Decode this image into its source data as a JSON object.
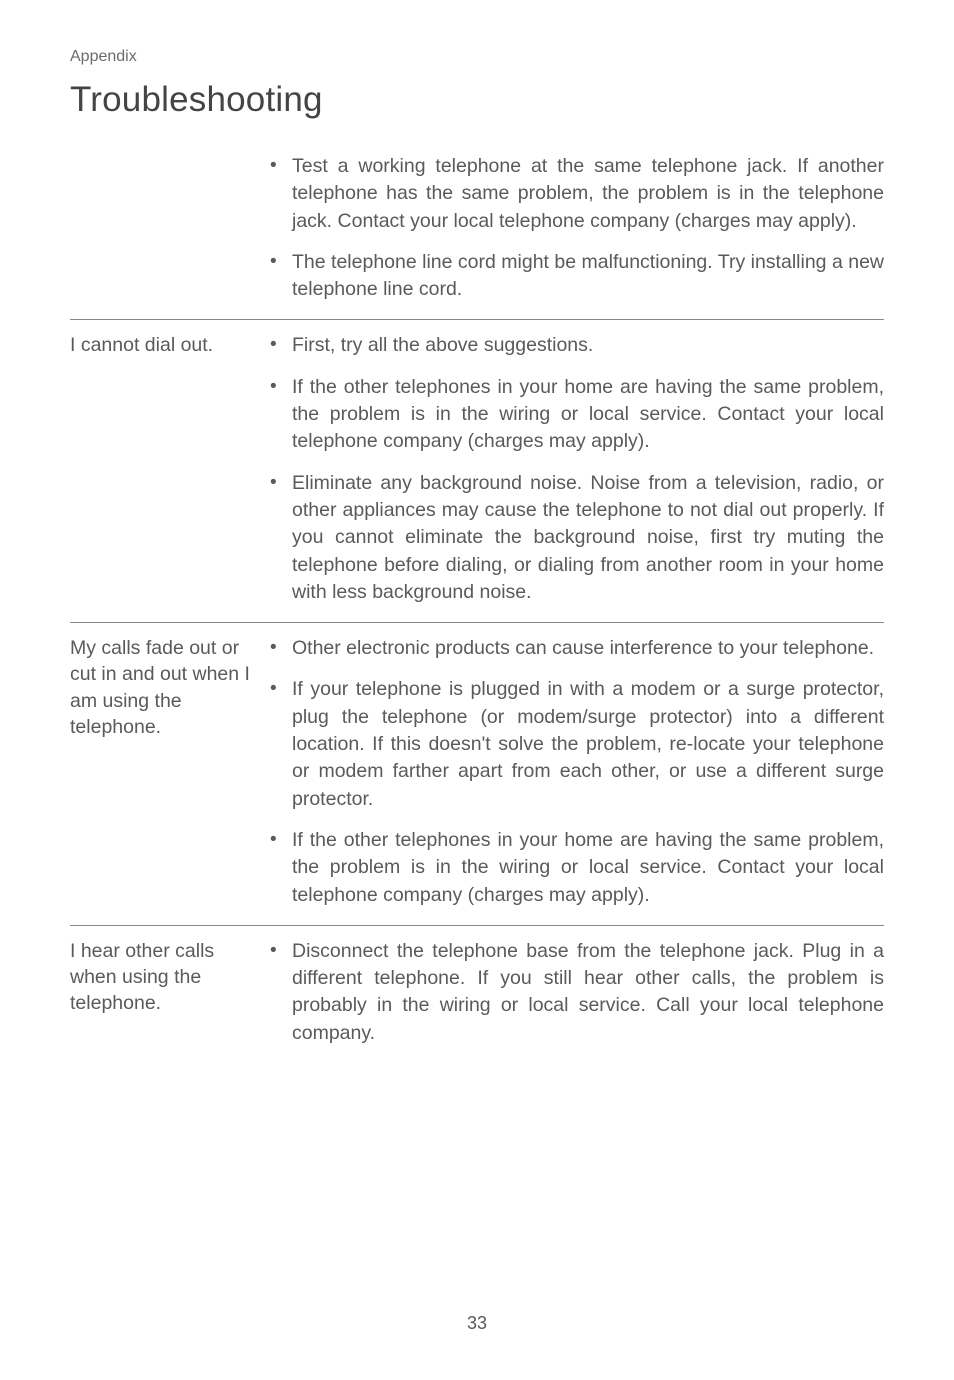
{
  "header": {
    "label": "Appendix"
  },
  "title": "Troubleshooting",
  "sections": [
    {
      "problem": "",
      "bullets": [
        "Test a working telephone at the same telephone jack. If another telephone has the same problem, the problem is in the telephone jack. Contact your local telephone company (charges may apply).",
        "The telephone line cord might be malfunctioning. Try installing a new telephone line cord."
      ]
    },
    {
      "problem": "I cannot dial out.",
      "bullets": [
        "First, try all the above suggestions.",
        "If the other telephones in your home are having the same problem, the problem is in the wiring or local service. Contact your local telephone company (charges may apply).",
        "Eliminate any background noise. Noise from a television, radio, or other appliances may cause the telephone to not dial out properly. If you cannot eliminate the background noise, first try muting the telephone before dialing, or dialing from another room in your home with less background noise."
      ]
    },
    {
      "problem": "My calls fade out or cut in and out when I am using the telephone.",
      "bullets": [
        "Other electronic products can cause interference to your telephone.",
        "If your telephone is plugged in with a modem or a surge protector, plug the telephone (or modem/surge protector) into a different location. If this doesn't solve the problem, re-locate your telephone or modem farther apart from each other, or use a different surge protector.",
        "If the other telephones in your home are having the same problem, the problem is in the wiring or local service. Contact your local telephone company (charges may apply)."
      ]
    },
    {
      "problem": "I hear other calls when using the telephone.",
      "bullets": [
        "Disconnect the telephone base from the telephone jack. Plug in a different telephone. If you still hear other calls, the problem is probably in the wiring or local service. Call your local telephone company."
      ]
    }
  ],
  "pageNumber": "33"
}
